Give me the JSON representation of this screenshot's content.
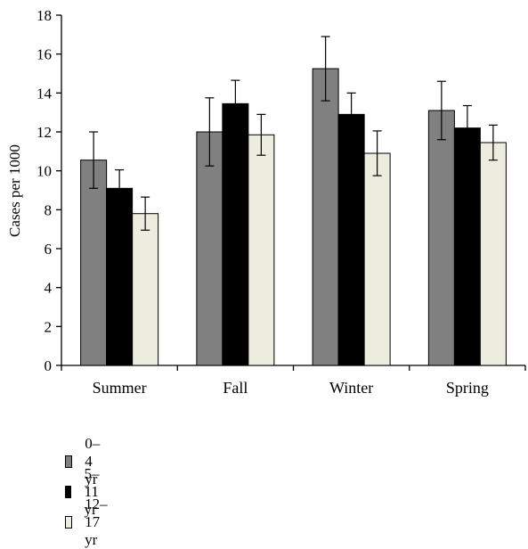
{
  "chart_data": {
    "type": "bar",
    "title": "",
    "xlabel": "",
    "ylabel": "Cases per 1000",
    "ylim": [
      0,
      18
    ],
    "yticks": [
      0,
      2,
      4,
      6,
      8,
      10,
      12,
      14,
      16,
      18
    ],
    "categories": [
      "Summer",
      "Fall",
      "Winter",
      "Spring"
    ],
    "series": [
      {
        "name": "0–4 yr",
        "color": "#808080",
        "values": [
          10.55,
          12.0,
          15.25,
          13.1
        ],
        "error": [
          1.45,
          1.75,
          1.65,
          1.5
        ]
      },
      {
        "name": "5–11 yr",
        "color": "#000000",
        "values": [
          9.1,
          13.45,
          12.9,
          12.2
        ],
        "error": [
          0.95,
          1.2,
          1.1,
          1.15
        ]
      },
      {
        "name": "12–17 yr",
        "color": "#ededdf",
        "values": [
          7.8,
          11.85,
          10.9,
          11.45
        ],
        "error": [
          0.85,
          1.05,
          1.15,
          0.9
        ]
      }
    ],
    "grid": false,
    "legend_position": "bottom-left"
  }
}
